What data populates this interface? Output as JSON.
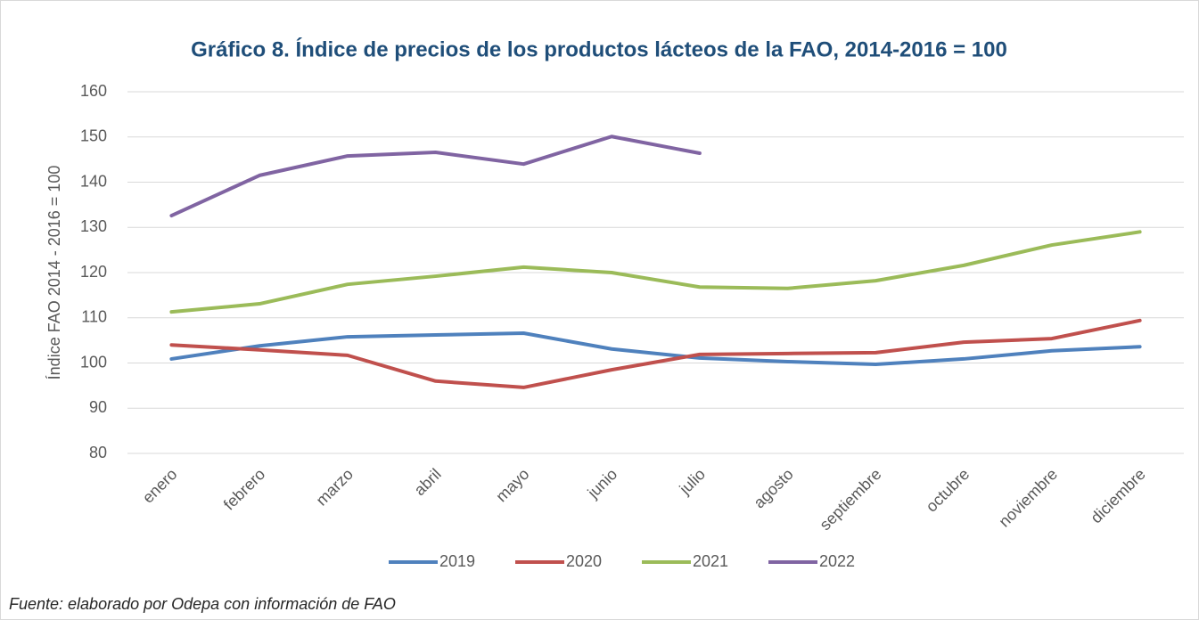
{
  "chart_data": {
    "type": "line",
    "title": "Gráfico 8. Índice de precios de los productos lácteos de la FAO, 2014-2016 = 100",
    "y_label": "Índice FAO 2014 - 2016 = 100",
    "source": "Fuente: elaborado por Odepa con información de FAO",
    "categories": [
      "enero",
      "febrero",
      "marzo",
      "abril",
      "mayo",
      "junio",
      "julio",
      "agosto",
      "septiembre",
      "octubre",
      "noviembre",
      "diciembre"
    ],
    "series": [
      {
        "name": "2019",
        "color": "#4f81bd",
        "values": [
          100.9,
          103.8,
          105.8,
          106.2,
          106.6,
          103.1,
          101.1,
          100.3,
          99.7,
          100.9,
          102.7,
          103.6
        ]
      },
      {
        "name": "2020",
        "color": "#c0504d",
        "values": [
          104.0,
          102.9,
          101.7,
          96.0,
          94.6,
          98.5,
          101.9,
          102.1,
          102.3,
          104.6,
          105.4,
          109.4
        ]
      },
      {
        "name": "2021",
        "color": "#9bbb59",
        "values": [
          111.3,
          113.1,
          117.4,
          119.2,
          121.2,
          120.0,
          116.8,
          116.5,
          118.2,
          121.6,
          126.1,
          129.0
        ]
      },
      {
        "name": "2022",
        "color": "#8064a2",
        "values": [
          132.6,
          141.5,
          145.8,
          146.6,
          144.0,
          150.1,
          146.4,
          null,
          null,
          null,
          null,
          null
        ]
      }
    ],
    "ylim": [
      80,
      160
    ],
    "yticks": [
      80,
      90,
      100,
      110,
      120,
      130,
      140,
      150,
      160
    ],
    "grid": true,
    "legend": "bottom"
  }
}
